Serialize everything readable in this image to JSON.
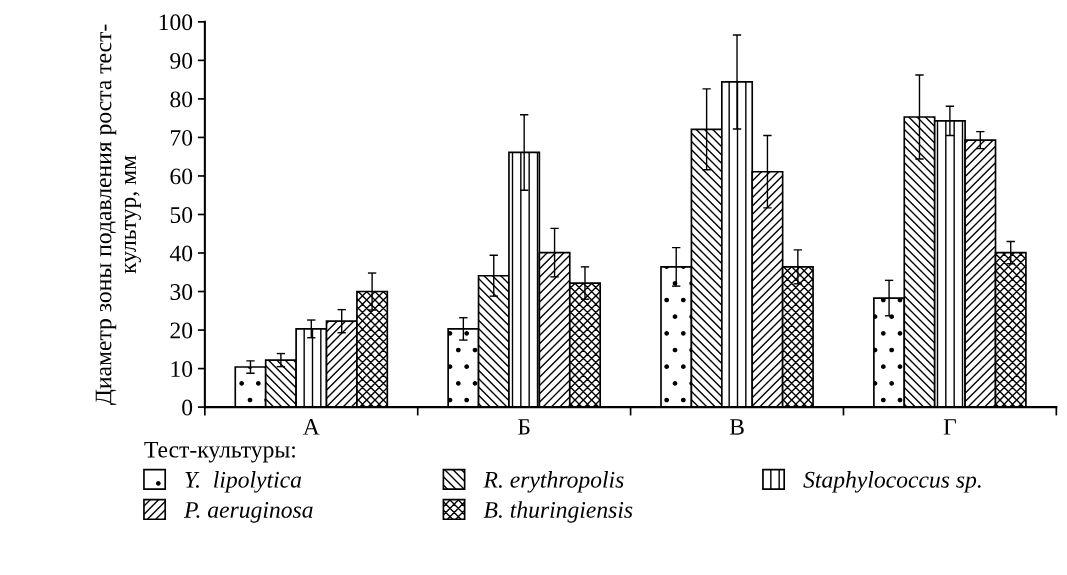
{
  "chart_data": {
    "type": "bar",
    "ylabel": "Диаметр зоны подавления роста тест-\nкультур, мм",
    "legend_title": "Тест-культуры:",
    "categories": [
      "А",
      "Б",
      "В",
      "Г"
    ],
    "series": [
      {
        "name": "Y.  lipolytica",
        "color": "#000000",
        "values": [
          10.4,
          20.3,
          36.4,
          28.3
        ],
        "errors": [
          1.6,
          2.9,
          5,
          4.6
        ]
      },
      {
        "name": "R. erythropolis",
        "color": "#000000",
        "values": [
          12.2,
          34.1,
          72.1,
          75.3
        ],
        "errors": [
          1.7,
          5.3,
          10.5,
          10.9
        ]
      },
      {
        "name": "Staphylococcus sp.",
        "color": "#000000",
        "values": [
          20.3,
          66.1,
          84.4,
          74.3
        ],
        "errors": [
          2.3,
          9.8,
          12.2,
          3.8
        ]
      },
      {
        "name": "P. aeruginosa",
        "color": "#000000",
        "values": [
          22.3,
          40.1,
          61.1,
          69.3
        ],
        "errors": [
          3,
          6.3,
          9.4,
          2.2
        ]
      },
      {
        "name": "B. thuringiensis",
        "color": "#000000",
        "values": [
          30,
          32.2,
          36.4,
          40.1
        ],
        "errors": [
          4.8,
          4.2,
          4.4,
          2.9
        ]
      }
    ],
    "ylim": [
      0,
      100
    ],
    "yticks": [
      0,
      10,
      20,
      30,
      40,
      50,
      60,
      70,
      80,
      90,
      100
    ],
    "grid": false,
    "legend": "bottom"
  }
}
